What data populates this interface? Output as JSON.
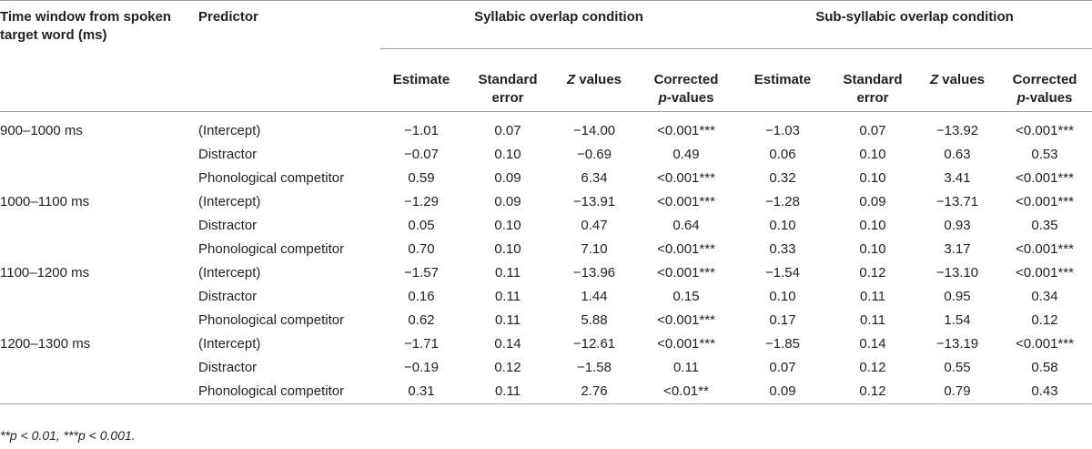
{
  "header": {
    "time_window": "Time window from spoken target word (ms)",
    "predictor": "Predictor",
    "syllabic": "Syllabic overlap condition",
    "subsyllabic": "Sub-syllabic overlap condition",
    "cols": {
      "estimate": "Estimate",
      "se": "Standard error",
      "z_italic": "Z",
      "z_rest": " values",
      "corr_line1": "Corrected",
      "corr_p": "p",
      "corr_rest": "-values"
    }
  },
  "rows": [
    {
      "time": "900–1000 ms",
      "predictor": "(Intercept)",
      "s": [
        "−1.01",
        "0.07",
        "−14.00",
        "<0.001***"
      ],
      "u": [
        "−1.03",
        "0.07",
        "−13.92",
        "<0.001***"
      ]
    },
    {
      "time": "",
      "predictor": "Distractor",
      "s": [
        "−0.07",
        "0.10",
        "−0.69",
        "0.49"
      ],
      "u": [
        "0.06",
        "0.10",
        "0.63",
        "0.53"
      ]
    },
    {
      "time": "",
      "predictor": "Phonological competitor",
      "s": [
        "0.59",
        "0.09",
        "6.34",
        "<0.001***"
      ],
      "u": [
        "0.32",
        "0.10",
        "3.41",
        "<0.001***"
      ]
    },
    {
      "time": "1000–1100 ms",
      "predictor": "(Intercept)",
      "s": [
        "−1.29",
        "0.09",
        "−13.91",
        "<0.001***"
      ],
      "u": [
        "−1.28",
        "0.09",
        "−13.71",
        "<0.001***"
      ]
    },
    {
      "time": "",
      "predictor": "Distractor",
      "s": [
        "0.05",
        "0.10",
        "0.47",
        "0.64"
      ],
      "u": [
        "0.10",
        "0.10",
        "0.93",
        "0.35"
      ]
    },
    {
      "time": "",
      "predictor": "Phonological competitor",
      "s": [
        "0.70",
        "0.10",
        "7.10",
        "<0.001***"
      ],
      "u": [
        "0.33",
        "0.10",
        "3.17",
        "<0.001***"
      ]
    },
    {
      "time": "1100–1200 ms",
      "predictor": "(Intercept)",
      "s": [
        "−1.57",
        "0.11",
        "−13.96",
        "<0.001***"
      ],
      "u": [
        "−1.54",
        "0.12",
        "−13.10",
        "<0.001***"
      ]
    },
    {
      "time": "",
      "predictor": "Distractor",
      "s": [
        "0.16",
        "0.11",
        "1.44",
        "0.15"
      ],
      "u": [
        "0.10",
        "0.11",
        "0.95",
        "0.34"
      ]
    },
    {
      "time": "",
      "predictor": "Phonological competitor",
      "s": [
        "0.62",
        "0.11",
        "5.88",
        "<0.001***"
      ],
      "u": [
        "0.17",
        "0.11",
        "1.54",
        "0.12"
      ]
    },
    {
      "time": "1200–1300 ms",
      "predictor": "(Intercept)",
      "s": [
        "−1.71",
        "0.14",
        "−12.61",
        "<0.001***"
      ],
      "u": [
        "−1.85",
        "0.14",
        "−13.19",
        "<0.001***"
      ]
    },
    {
      "time": "",
      "predictor": "Distractor",
      "s": [
        "−0.19",
        "0.12",
        "−1.58",
        "0.11"
      ],
      "u": [
        "0.07",
        "0.12",
        "0.55",
        "0.58"
      ]
    },
    {
      "time": "",
      "predictor": "Phonological competitor",
      "s": [
        "0.31",
        "0.11",
        "2.76",
        "<0.01**"
      ],
      "u": [
        "0.09",
        "0.12",
        "0.79",
        "0.43"
      ]
    }
  ],
  "footnote": "**p < 0.01, ***p < 0.001."
}
